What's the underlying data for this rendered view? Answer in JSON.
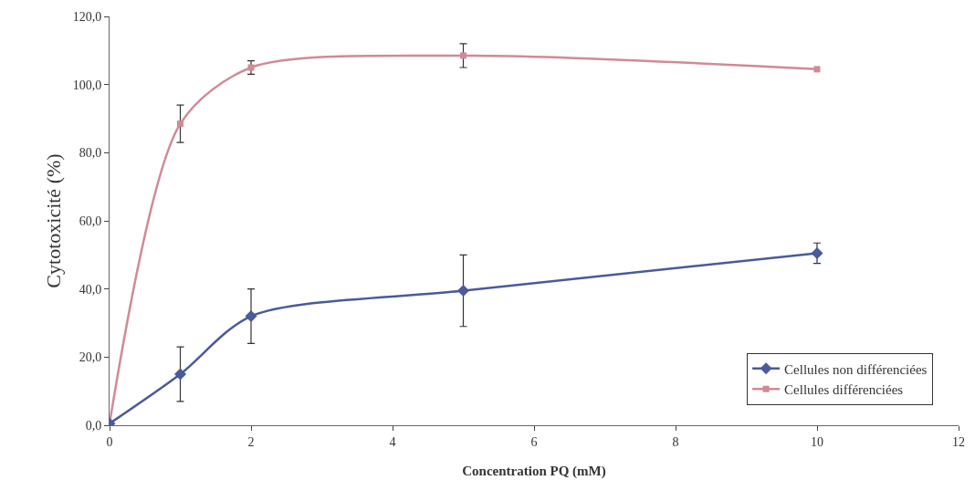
{
  "chart_data": {
    "type": "line",
    "xlabel": "Concentration PQ (mM)",
    "ylabel": "Cytotoxicité (%)",
    "x": [
      0,
      1,
      2,
      5,
      10
    ],
    "series": [
      {
        "name": "Cellules non différenciées",
        "color": "#4a5a9a",
        "marker": "diamond",
        "values": [
          0.5,
          15,
          32,
          39.5,
          50.5
        ],
        "errors": [
          null,
          8,
          8,
          10.5,
          3
        ]
      },
      {
        "name": "Cellules différenciées",
        "color": "#d08a96",
        "marker": "square",
        "values": [
          0.5,
          88.5,
          105,
          108.5,
          104.5
        ],
        "errors": [
          null,
          5.5,
          2,
          3.5,
          null
        ]
      }
    ],
    "xlim": [
      0,
      12
    ],
    "xticks": [
      0,
      2,
      4,
      6,
      8,
      10,
      12
    ],
    "ylim": [
      0,
      120
    ],
    "yticks": [
      {
        "value": 0,
        "label": "0,0"
      },
      {
        "value": 20,
        "label": "20,0"
      },
      {
        "value": 40,
        "label": "40,0"
      },
      {
        "value": 60,
        "label": "60,0"
      },
      {
        "value": 80,
        "label": "80,0"
      },
      {
        "value": 100,
        "label": "100,0"
      },
      {
        "value": 120,
        "label": "120,0"
      }
    ],
    "grid": false,
    "legend": "bottom right",
    "line_style": "solid"
  }
}
